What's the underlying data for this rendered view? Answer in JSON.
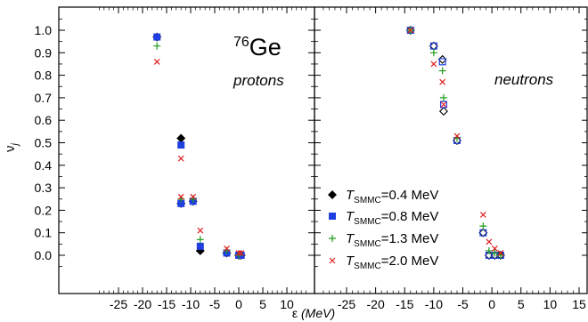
{
  "chart_data": {
    "type": "scatter",
    "ylabel": "ν",
    "ylabel_sub": "j",
    "xlabel": "ε (MeV)",
    "ylim": [
      -0.1,
      1.1
    ],
    "y_ticks": [
      "0.0",
      "0.1",
      "0.2",
      "0.3",
      "0.4",
      "0.5",
      "0.6",
      "0.7",
      "0.8",
      "0.9",
      "1.0"
    ],
    "x_ticks": [
      "-25",
      "-20",
      "-15",
      "-10",
      "-5",
      "0",
      "5",
      "10",
      "15"
    ],
    "legend": {
      "placement": "lower-left of right panel",
      "entries": [
        {
          "sym": "T",
          "sub": "SMMC",
          "text": "=0.4 MeV",
          "marker": "diamond",
          "color": "#000000"
        },
        {
          "sym": "T",
          "sub": "SMMC",
          "text": "=0.8 MeV",
          "marker": "square",
          "color": "#1f3fe0"
        },
        {
          "sym": "T",
          "sub": "SMMC",
          "text": "=1.3 MeV",
          "marker": "plus",
          "color": "#1f9a1f"
        },
        {
          "sym": "T",
          "sub": "SMMC",
          "text": "=2.0 MeV",
          "marker": "x",
          "color": "#e02020"
        }
      ]
    },
    "panels": [
      {
        "name": "protons",
        "label_sup": "76",
        "label_main": "Ge",
        "label_sub": "protons",
        "xlim": [
          -30,
          15
        ],
        "x_tick_values": [
          -25,
          -20,
          -15,
          -10,
          -5,
          0,
          5,
          10
        ],
        "series": [
          {
            "temp": "0.4",
            "filled": true,
            "points": [
              [
                -17,
                0.97
              ],
              [
                -12,
                0.52
              ],
              [
                -12,
                0.23
              ],
              [
                -9.5,
                0.24
              ],
              [
                -8,
                0.02
              ],
              [
                -2.5,
                0.01
              ],
              [
                0,
                0.0
              ],
              [
                0.5,
                0.0
              ]
            ]
          },
          {
            "temp": "0.8",
            "filled": true,
            "points": [
              [
                -17,
                0.97
              ],
              [
                -12,
                0.49
              ],
              [
                -12,
                0.23
              ],
              [
                -9.5,
                0.24
              ],
              [
                -8,
                0.04
              ],
              [
                -2.5,
                0.01
              ],
              [
                0,
                0.0
              ],
              [
                0.5,
                0.0
              ]
            ]
          },
          {
            "temp": "1.3",
            "filled": true,
            "points": [
              [
                -17,
                0.93
              ],
              [
                -12,
                0.25
              ],
              [
                -9.5,
                0.25
              ],
              [
                -8,
                0.07
              ],
              [
                -2.5,
                0.02
              ],
              [
                0,
                0.0
              ]
            ]
          },
          {
            "temp": "2.0",
            "filled": true,
            "points": [
              [
                -17,
                0.86
              ],
              [
                -12,
                0.43
              ],
              [
                -12,
                0.26
              ],
              [
                -9.5,
                0.26
              ],
              [
                -8,
                0.11
              ],
              [
                -2.5,
                0.03
              ],
              [
                0,
                0.01
              ],
              [
                0.5,
                0.01
              ]
            ]
          }
        ]
      },
      {
        "name": "neutrons",
        "label_main": "neutrons",
        "xlim": [
          -30,
          15
        ],
        "x_tick_values": [
          -25,
          -20,
          -15,
          -10,
          -5,
          0,
          5,
          10,
          15
        ],
        "series": [
          {
            "temp": "0.4",
            "filled": false,
            "points": [
              [
                -14,
                1.0
              ],
              [
                -10,
                0.93
              ],
              [
                -8.5,
                0.87
              ],
              [
                -8.3,
                0.64
              ],
              [
                -6,
                0.51
              ],
              [
                -1.5,
                0.1
              ],
              [
                -0.5,
                0.0
              ],
              [
                0.5,
                0.0
              ],
              [
                1.5,
                0.0
              ]
            ]
          },
          {
            "temp": "0.8",
            "filled": false,
            "points": [
              [
                -14,
                1.0
              ],
              [
                -10,
                0.93
              ],
              [
                -8.5,
                0.86
              ],
              [
                -8.3,
                0.67
              ],
              [
                -6,
                0.51
              ],
              [
                -1.5,
                0.1
              ],
              [
                -0.5,
                0.0
              ],
              [
                0.5,
                0.0
              ],
              [
                1.5,
                0.0
              ]
            ]
          },
          {
            "temp": "1.3",
            "filled": true,
            "points": [
              [
                -14,
                1.0
              ],
              [
                -10,
                0.9
              ],
              [
                -8.5,
                0.82
              ],
              [
                -8.3,
                0.7
              ],
              [
                -6,
                0.52
              ],
              [
                -1.5,
                0.13
              ],
              [
                -0.5,
                0.02
              ],
              [
                0.5,
                0.01
              ],
              [
                1.5,
                0.0
              ]
            ]
          },
          {
            "temp": "2.0",
            "filled": true,
            "points": [
              [
                -14,
                1.0
              ],
              [
                -10,
                0.85
              ],
              [
                -8.5,
                0.77
              ],
              [
                -8.3,
                0.67
              ],
              [
                -6,
                0.53
              ],
              [
                -1.5,
                0.18
              ],
              [
                -0.5,
                0.06
              ],
              [
                0.5,
                0.03
              ],
              [
                1.5,
                0.01
              ]
            ]
          }
        ]
      }
    ]
  }
}
